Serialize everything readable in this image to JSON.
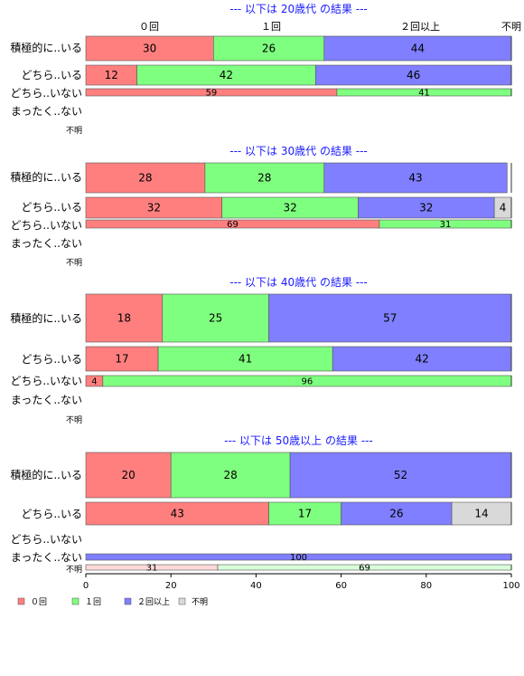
{
  "chart_data": {
    "type": "bar",
    "orientation": "horizontal",
    "stacked": true,
    "xlim": [
      0,
      100
    ],
    "x_ticks": [
      0,
      20,
      40,
      60,
      80,
      100
    ],
    "column_labels": [
      "０回",
      "１回",
      "２回以上",
      "不明"
    ],
    "legend": {
      "placement": "bottom-left",
      "entries": [
        {
          "name": "０回",
          "color": "#ff7f7f"
        },
        {
          "name": "１回",
          "color": "#7fff7f"
        },
        {
          "name": "２回以上",
          "color": "#7f7fff"
        },
        {
          "name": "不明",
          "color": "#d9d9d9"
        }
      ]
    },
    "groups": [
      {
        "title": "--- 以下は 20歳代 の結果 ---",
        "rows": [
          {
            "label": "積極的に..いる",
            "values": [
              30,
              26,
              44,
              0
            ]
          },
          {
            "label": "どちら..いる",
            "values": [
              12,
              42,
              46,
              0
            ]
          },
          {
            "label": "どちら..いない",
            "values": [
              59,
              41,
              0,
              0
            ]
          },
          {
            "label": "まったく..ない",
            "values": []
          },
          {
            "label": "不明",
            "values": []
          }
        ]
      },
      {
        "title": "--- 以下は 30歳代 の結果 ---",
        "rows": [
          {
            "label": "積極的に..いる",
            "values": [
              28,
              28,
              43,
              0
            ]
          },
          {
            "label": "どちら..いる",
            "values": [
              32,
              32,
              32,
              4
            ]
          },
          {
            "label": "どちら..いない",
            "values": [
              69,
              31,
              0,
              0
            ]
          },
          {
            "label": "まったく..ない",
            "values": []
          },
          {
            "label": "不明",
            "values": []
          }
        ]
      },
      {
        "title": "--- 以下は 40歳代 の結果 ---",
        "rows": [
          {
            "label": "積極的に..いる",
            "values": [
              18,
              25,
              57,
              0
            ]
          },
          {
            "label": "どちら..いる",
            "values": [
              17,
              41,
              42,
              0
            ]
          },
          {
            "label": "どちら..いない",
            "values": [
              4,
              96,
              0,
              0
            ]
          },
          {
            "label": "まったく..ない",
            "values": []
          },
          {
            "label": "不明",
            "values": []
          }
        ]
      },
      {
        "title": "--- 以下は 50歳以上 の結果 ---",
        "rows": [
          {
            "label": "積極的に..いる",
            "values": [
              20,
              28,
              52,
              0
            ]
          },
          {
            "label": "どちら..いる",
            "values": [
              43,
              17,
              26,
              14
            ]
          },
          {
            "label": "どちら..いない",
            "values": []
          },
          {
            "label": "まったく..ない",
            "values": [
              0,
              0,
              100,
              0
            ]
          },
          {
            "label": "不明",
            "values": [
              31,
              69,
              0,
              0
            ]
          }
        ]
      }
    ]
  }
}
